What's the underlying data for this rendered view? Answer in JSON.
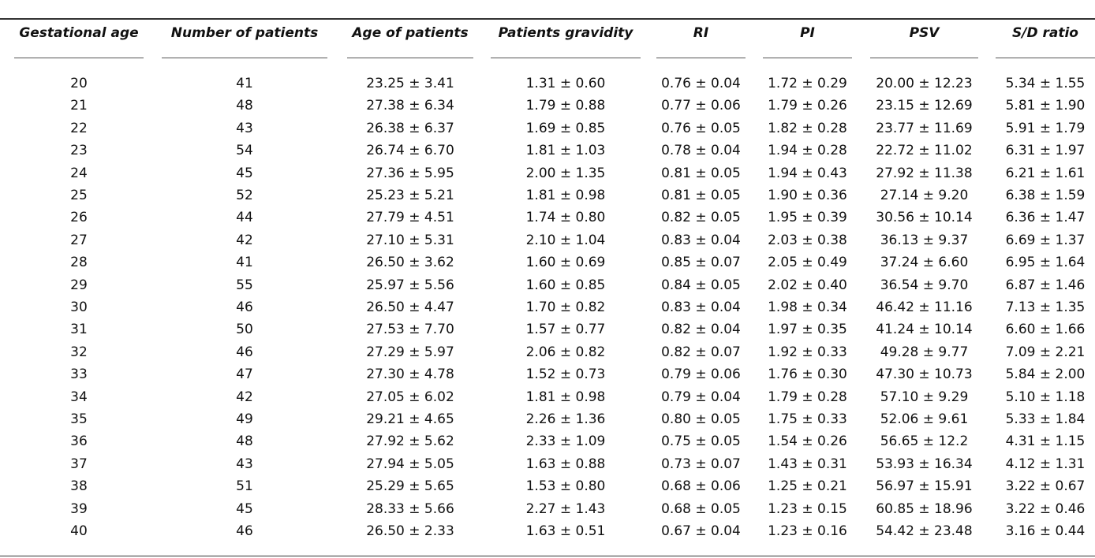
{
  "table": {
    "headers": [
      "Gestational age",
      "Number of patients",
      "Age of patients",
      "Patients gravidity",
      "RI",
      "PI",
      "PSV",
      "S/D ratio"
    ],
    "rows": [
      [
        "20",
        "41",
        "23.25 ± 3.41",
        "1.31 ± 0.60",
        "0.76 ± 0.04",
        "1.72 ± 0.29",
        "20.00 ± 12.23",
        "5.34 ± 1.55"
      ],
      [
        "21",
        "48",
        "27.38 ± 6.34",
        "1.79 ± 0.88",
        "0.77 ± 0.06",
        "1.79 ± 0.26",
        "23.15 ± 12.69",
        "5.81 ± 1.90"
      ],
      [
        "22",
        "43",
        "26.38 ± 6.37",
        "1.69 ± 0.85",
        "0.76 ± 0.05",
        "1.82 ± 0.28",
        "23.77 ± 11.69",
        "5.91 ± 1.79"
      ],
      [
        "23",
        "54",
        "26.74 ± 6.70",
        "1.81 ± 1.03",
        "0.78 ± 0.04",
        "1.94 ± 0.28",
        "22.72 ± 11.02",
        "6.31 ± 1.97"
      ],
      [
        "24",
        "45",
        "27.36 ± 5.95",
        "2.00 ± 1.35",
        "0.81 ± 0.05",
        "1.94 ± 0.43",
        "27.92 ± 11.38",
        "6.21 ± 1.61"
      ],
      [
        "25",
        "52",
        "25.23 ± 5.21",
        "1.81 ± 0.98",
        "0.81 ± 0.05",
        "1.90 ± 0.36",
        "27.14 ± 9.20",
        "6.38 ± 1.59"
      ],
      [
        "26",
        "44",
        "27.79 ± 4.51",
        "1.74 ± 0.80",
        "0.82 ± 0.05",
        "1.95 ± 0.39",
        "30.56 ± 10.14",
        "6.36 ± 1.47"
      ],
      [
        "27",
        "42",
        "27.10 ± 5.31",
        "2.10 ± 1.04",
        "0.83 ± 0.04",
        "2.03 ± 0.38",
        "36.13 ± 9.37",
        "6.69 ± 1.37"
      ],
      [
        "28",
        "41",
        "26.50 ± 3.62",
        "1.60 ± 0.69",
        "0.85 ± 0.07",
        "2.05 ± 0.49",
        "37.24 ± 6.60",
        "6.95 ± 1.64"
      ],
      [
        "29",
        "55",
        "25.97 ± 5.56",
        "1.60 ± 0.85",
        "0.84 ± 0.05",
        "2.02 ± 0.40",
        "36.54 ± 9.70",
        "6.87 ± 1.46"
      ],
      [
        "30",
        "46",
        "26.50 ± 4.47",
        "1.70 ± 0.82",
        "0.83 ± 0.04",
        "1.98 ± 0.34",
        "46.42 ± 11.16",
        "7.13 ± 1.35"
      ],
      [
        "31",
        "50",
        "27.53 ± 7.70",
        "1.57 ± 0.77",
        "0.82 ± 0.04",
        "1.97 ± 0.35",
        "41.24 ± 10.14",
        "6.60 ± 1.66"
      ],
      [
        "32",
        "46",
        "27.29 ± 5.97",
        "2.06 ± 0.82",
        "0.82 ± 0.07",
        "1.92 ± 0.33",
        "49.28 ± 9.77",
        "7.09 ± 2.21"
      ],
      [
        "33",
        "47",
        "27.30 ± 4.78",
        "1.52 ± 0.73",
        "0.79 ± 0.06",
        "1.76 ± 0.30",
        "47.30 ± 10.73",
        "5.84 ± 2.00"
      ],
      [
        "34",
        "42",
        "27.05 ± 6.02",
        "1.81 ± 0.98",
        "0.79 ± 0.04",
        "1.79 ± 0.28",
        "57.10 ± 9.29",
        "5.10 ± 1.18"
      ],
      [
        "35",
        "49",
        "29.21 ± 4.65",
        "2.26 ± 1.36",
        "0.80 ± 0.05",
        "1.75 ± 0.33",
        "52.06 ± 9.61",
        "5.33 ± 1.84"
      ],
      [
        "36",
        "48",
        "27.92 ± 5.62",
        "2.33 ± 1.09",
        "0.75 ± 0.05",
        "1.54 ± 0.26",
        "56.65 ± 12.2",
        "4.31 ± 1.15"
      ],
      [
        "37",
        "43",
        "27.94 ± 5.05",
        "1.63 ± 0.88",
        "0.73 ± 0.07",
        "1.43 ± 0.31",
        "53.93 ± 16.34",
        "4.12 ± 1.31"
      ],
      [
        "38",
        "51",
        "25.29 ± 5.65",
        "1.53 ± 0.80",
        "0.68 ± 0.06",
        "1.25 ± 0.21",
        "56.97 ± 15.91",
        "3.22 ± 0.67"
      ],
      [
        "39",
        "45",
        "28.33 ± 5.66",
        "2.27 ± 1.43",
        "0.68 ± 0.05",
        "1.23 ± 0.15",
        "60.85 ± 18.96",
        "3.22 ± 0.46"
      ],
      [
        "40",
        "46",
        "26.50 ± 2.33",
        "1.63 ± 0.51",
        "0.67 ± 0.04",
        "1.23 ± 0.16",
        "54.42 ± 23.48",
        "3.16 ± 0.44"
      ]
    ]
  }
}
